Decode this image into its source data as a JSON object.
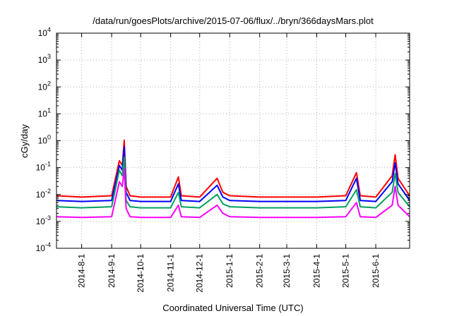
{
  "chart_data": {
    "type": "line",
    "title": "/data/run/goesPlots/archive/2015-07-06/flux/../bryn/366daysMars.plot",
    "xlabel": "Coordinated Universal Time (UTC)",
    "ylabel": "cGy/day",
    "y_scale": "log",
    "ylim": [
      0.0001,
      10000
    ],
    "xlim": [
      "2014-07-06",
      "2015-07-06"
    ],
    "grid": true,
    "legend": "none",
    "x_ticks": [
      "2014-8-1",
      "2014-9-1",
      "2014-10-1",
      "2014-11-1",
      "2014-12-1",
      "2015-1-1",
      "2015-2-1",
      "2015-3-1",
      "2015-4-1",
      "2015-5-1",
      "2015-6-1"
    ],
    "y_ticks": [
      {
        "base": "10",
        "exp": "-4",
        "value": 0.0001
      },
      {
        "base": "10",
        "exp": "-3",
        "value": 0.001
      },
      {
        "base": "10",
        "exp": "-2",
        "value": 0.01
      },
      {
        "base": "10",
        "exp": "-1",
        "value": 0.1
      },
      {
        "base": "10",
        "exp": "0",
        "value": 1
      },
      {
        "base": "10",
        "exp": "1",
        "value": 10
      },
      {
        "base": "10",
        "exp": "2",
        "value": 100
      },
      {
        "base": "10",
        "exp": "3",
        "value": 1000
      },
      {
        "base": "10",
        "exp": "4",
        "value": 10000
      }
    ],
    "series": [
      {
        "color": "#ff0000",
        "x": [
          "2014-07-06",
          "2014-08-01",
          "2014-09-01",
          "2014-09-09",
          "2014-09-12",
          "2014-09-14",
          "2014-09-16",
          "2014-09-20",
          "2014-10-01",
          "2014-11-01",
          "2014-11-09",
          "2014-11-12",
          "2014-12-01",
          "2014-12-19",
          "2014-12-25",
          "2015-01-01",
          "2015-02-01",
          "2015-03-01",
          "2015-04-01",
          "2015-05-01",
          "2015-05-12",
          "2015-05-16",
          "2015-06-01",
          "2015-06-18",
          "2015-06-21",
          "2015-06-24",
          "2015-07-06"
        ],
        "y": [
          0.009,
          0.008,
          0.009,
          0.18,
          0.12,
          1.05,
          0.02,
          0.009,
          0.008,
          0.008,
          0.045,
          0.009,
          0.008,
          0.04,
          0.012,
          0.009,
          0.008,
          0.008,
          0.008,
          0.009,
          0.065,
          0.009,
          0.008,
          0.05,
          0.3,
          0.04,
          0.009
        ]
      },
      {
        "color": "#0000ff",
        "x": [
          "2014-07-06",
          "2014-08-01",
          "2014-09-01",
          "2014-09-09",
          "2014-09-12",
          "2014-09-14",
          "2014-09-16",
          "2014-09-20",
          "2014-10-01",
          "2014-11-01",
          "2014-11-09",
          "2014-11-12",
          "2014-12-01",
          "2014-12-19",
          "2014-12-25",
          "2015-01-01",
          "2015-02-01",
          "2015-03-01",
          "2015-04-01",
          "2015-05-01",
          "2015-05-12",
          "2015-05-16",
          "2015-06-01",
          "2015-06-18",
          "2015-06-21",
          "2015-06-24",
          "2015-07-06"
        ],
        "y": [
          0.006,
          0.0055,
          0.006,
          0.12,
          0.08,
          0.6,
          0.012,
          0.006,
          0.0055,
          0.0055,
          0.025,
          0.006,
          0.0055,
          0.022,
          0.008,
          0.006,
          0.0055,
          0.0055,
          0.0055,
          0.006,
          0.04,
          0.006,
          0.0055,
          0.03,
          0.15,
          0.025,
          0.006
        ]
      },
      {
        "color": "#00a060",
        "x": [
          "2014-07-06",
          "2014-08-01",
          "2014-09-01",
          "2014-09-09",
          "2014-09-12",
          "2014-09-14",
          "2014-09-16",
          "2014-09-20",
          "2014-10-01",
          "2014-11-01",
          "2014-11-09",
          "2014-11-12",
          "2014-12-01",
          "2014-12-19",
          "2014-12-25",
          "2015-01-01",
          "2015-02-01",
          "2015-03-01",
          "2015-04-01",
          "2015-05-01",
          "2015-05-12",
          "2015-05-16",
          "2015-06-01",
          "2015-06-18",
          "2015-06-21",
          "2015-06-24",
          "2015-07-06"
        ],
        "y": [
          0.0035,
          0.0032,
          0.0035,
          0.08,
          0.05,
          0.25,
          0.006,
          0.0035,
          0.0032,
          0.0032,
          0.012,
          0.0035,
          0.0032,
          0.01,
          0.0045,
          0.0035,
          0.0032,
          0.0032,
          0.0032,
          0.0035,
          0.015,
          0.0035,
          0.0032,
          0.012,
          0.06,
          0.012,
          0.0035
        ]
      },
      {
        "color": "#ff00ff",
        "x": [
          "2014-07-06",
          "2014-08-01",
          "2014-09-01",
          "2014-09-09",
          "2014-09-12",
          "2014-09-14",
          "2014-09-16",
          "2014-09-20",
          "2014-10-01",
          "2014-11-01",
          "2014-11-09",
          "2014-11-12",
          "2014-12-01",
          "2014-12-19",
          "2014-12-25",
          "2015-01-01",
          "2015-02-01",
          "2015-03-01",
          "2015-04-01",
          "2015-05-01",
          "2015-05-12",
          "2015-05-16",
          "2015-06-01",
          "2015-06-18",
          "2015-06-21",
          "2015-06-24",
          "2015-07-06"
        ],
        "y": [
          0.0015,
          0.0014,
          0.0015,
          0.03,
          0.02,
          0.09,
          0.003,
          0.0015,
          0.0014,
          0.0014,
          0.004,
          0.0015,
          0.0014,
          0.004,
          0.002,
          0.0015,
          0.0014,
          0.0014,
          0.0014,
          0.0015,
          0.005,
          0.0015,
          0.0014,
          0.004,
          0.02,
          0.004,
          0.0015
        ]
      }
    ]
  }
}
